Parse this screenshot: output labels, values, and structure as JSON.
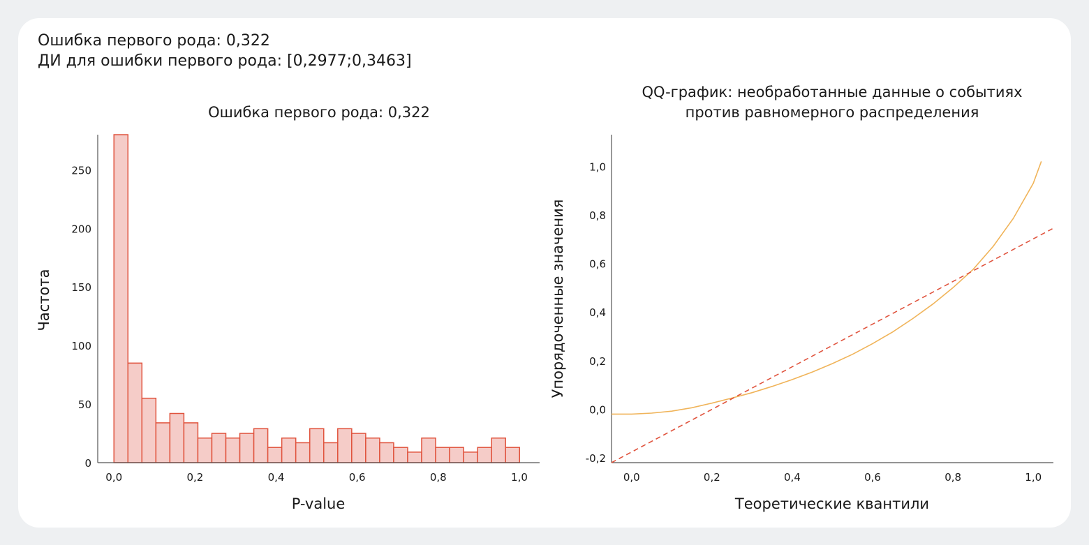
{
  "summary": {
    "line1": "Ошибка первого рода: 0,322",
    "line2": "ДИ для ошибки первого рода: [0,2977;0,3463]"
  },
  "colors": {
    "bar_fill": "#f5ccc8",
    "bar_stroke": "#e0533d",
    "qq_curve": "#f0b45a",
    "qq_line": "#e0533d",
    "axis": "#555555"
  },
  "chart_data": [
    {
      "type": "bar",
      "title": "Ошибка первого рода: 0,322",
      "xlabel": "P-value",
      "ylabel": "Частота",
      "bin_width": 0.0345,
      "bin_starts": [
        0.0,
        0.0345,
        0.069,
        0.1035,
        0.138,
        0.1725,
        0.207,
        0.2415,
        0.276,
        0.3105,
        0.345,
        0.3795,
        0.414,
        0.4485,
        0.483,
        0.5175,
        0.552,
        0.5865,
        0.621,
        0.6555,
        0.69,
        0.7245,
        0.759,
        0.7935,
        0.828,
        0.8625,
        0.897,
        0.9315,
        0.966
      ],
      "values": [
        280,
        85,
        55,
        34,
        42,
        34,
        21,
        25,
        21,
        25,
        29,
        13,
        21,
        17,
        29,
        17,
        29,
        25,
        21,
        17,
        13,
        9,
        21,
        13,
        13,
        9,
        13,
        21,
        13
      ],
      "xlim": [
        -0.04,
        1.05
      ],
      "ylim": [
        0,
        280
      ],
      "xticks": [
        0.0,
        0.2,
        0.4,
        0.6,
        0.8,
        1.0
      ],
      "xtick_labels": [
        "0,0",
        "0,2",
        "0,4",
        "0,6",
        "0,8",
        "1,0"
      ],
      "yticks": [
        0,
        50,
        100,
        150,
        200,
        250
      ],
      "ytick_labels": [
        "0",
        "50",
        "100",
        "150",
        "200",
        "250"
      ],
      "grid": false
    },
    {
      "type": "line",
      "title_lines": [
        "QQ-график: необработанные данные о событиях",
        "против равномерного распределения"
      ],
      "xlabel": "Теоретические квантили",
      "ylabel": "Упорядоченные значения",
      "xlim": [
        -0.05,
        1.05
      ],
      "ylim": [
        -0.22,
        1.13
      ],
      "xticks": [
        0.0,
        0.2,
        0.4,
        0.6,
        0.8,
        1.0
      ],
      "xtick_labels": [
        "0,0",
        "0,2",
        "0,4",
        "0,6",
        "0,8",
        "1,0"
      ],
      "yticks": [
        -0.2,
        0.0,
        0.2,
        0.4,
        0.6,
        0.8,
        1.0
      ],
      "ytick_labels": [
        "-0,2",
        "0,0",
        "0,2",
        "0,4",
        "0,6",
        "0,8",
        "1,0"
      ],
      "series": [
        {
          "style": "solid",
          "x": [
            -0.05,
            0.0,
            0.05,
            0.1,
            0.15,
            0.2,
            0.25,
            0.3,
            0.35,
            0.4,
            0.45,
            0.5,
            0.55,
            0.6,
            0.65,
            0.7,
            0.75,
            0.8,
            0.85,
            0.9,
            0.95,
            1.0,
            1.02
          ],
          "y": [
            -0.02,
            -0.02,
            -0.016,
            -0.008,
            0.006,
            0.025,
            0.046,
            0.068,
            0.094,
            0.122,
            0.153,
            0.188,
            0.226,
            0.27,
            0.318,
            0.373,
            0.433,
            0.5,
            0.575,
            0.67,
            0.785,
            0.93,
            1.02
          ]
        },
        {
          "style": "dashed",
          "x": [
            -0.05,
            1.05
          ],
          "y": [
            -0.22,
            0.745
          ]
        }
      ],
      "grid": false
    }
  ]
}
